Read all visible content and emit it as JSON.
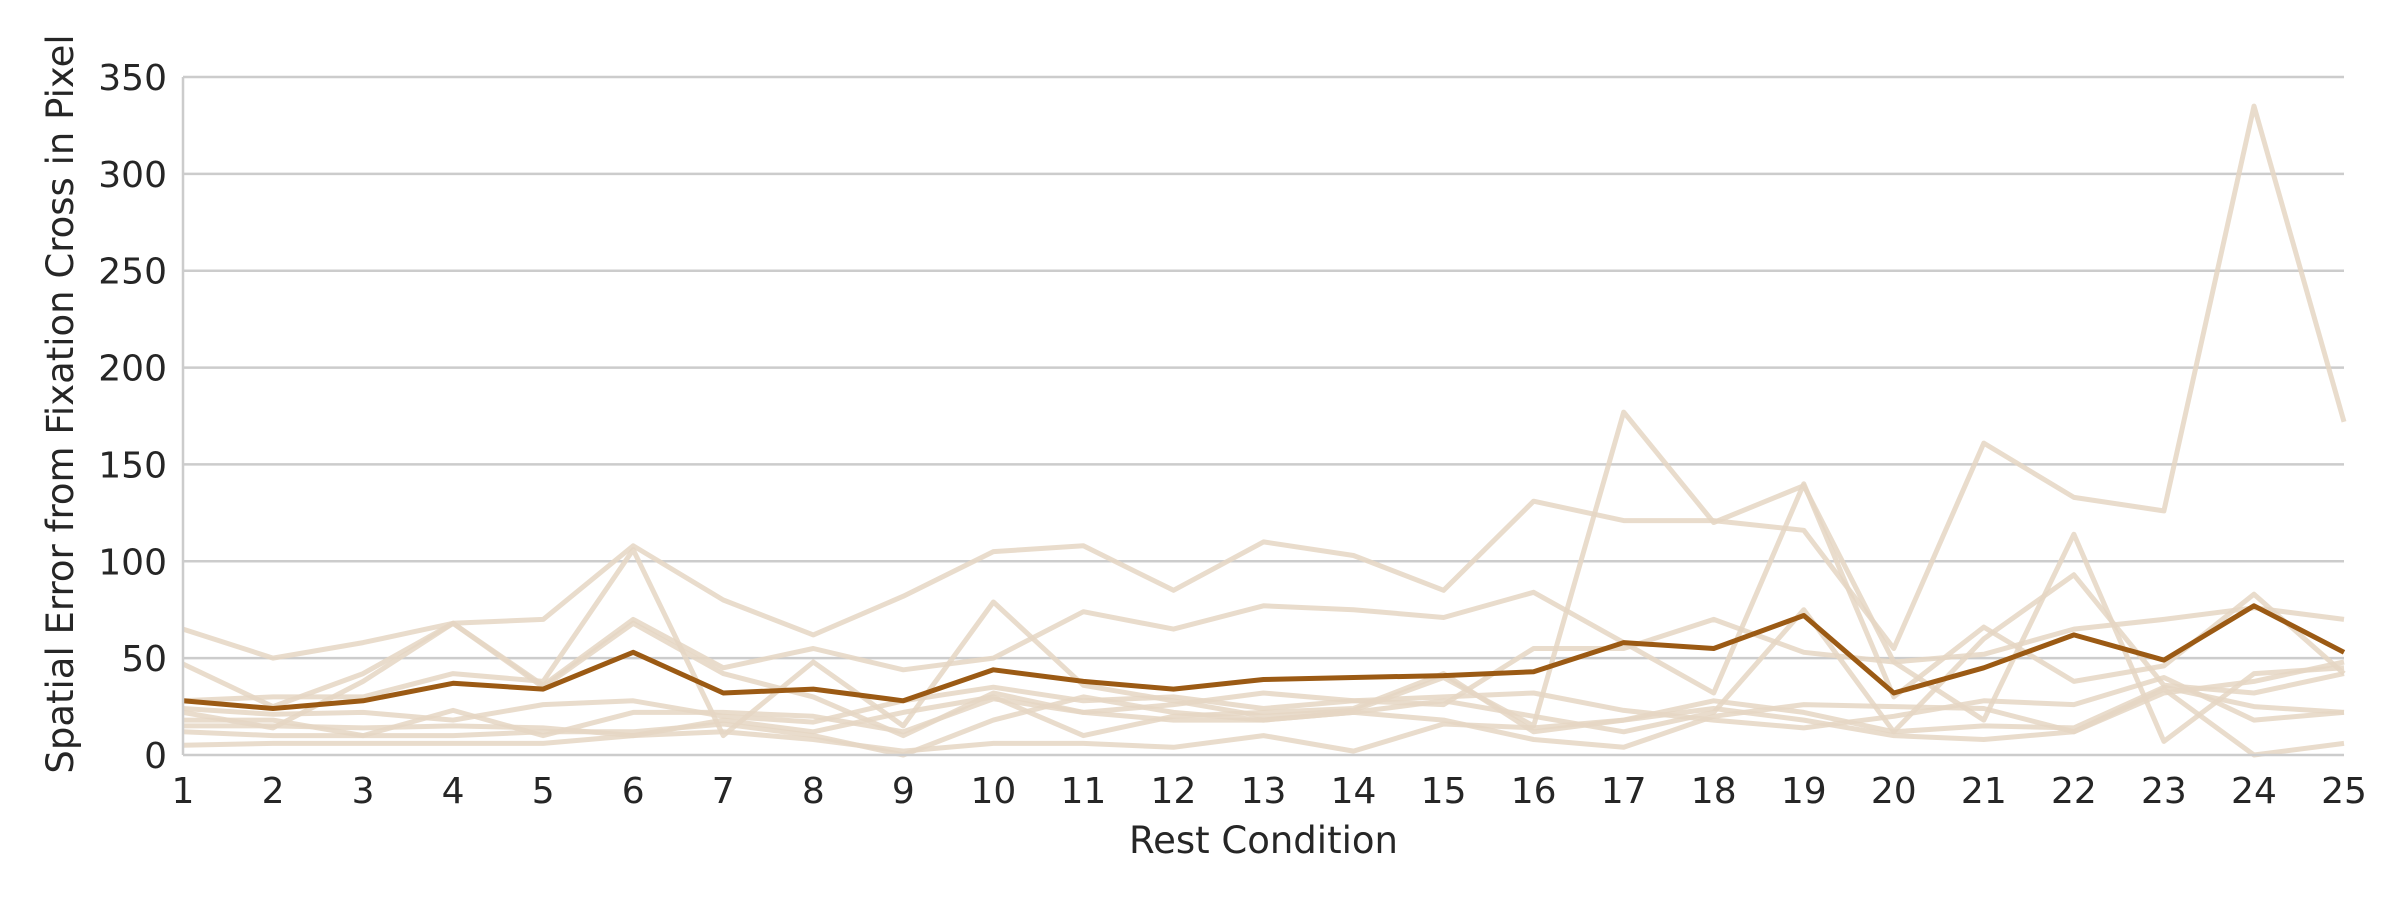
{
  "chart_data": {
    "type": "line",
    "title": "",
    "xlabel": "Rest Condition",
    "ylabel": "Spatial Error from Fixation Cross in Pixel",
    "x": [
      1,
      2,
      3,
      4,
      5,
      6,
      7,
      8,
      9,
      10,
      11,
      12,
      13,
      14,
      15,
      16,
      17,
      18,
      19,
      20,
      21,
      22,
      23,
      24,
      25
    ],
    "xlim": [
      1,
      25
    ],
    "ylim": [
      0,
      350
    ],
    "yticks": [
      0,
      50,
      100,
      150,
      200,
      250,
      300,
      350
    ],
    "grid": "horizontal",
    "legend": "none",
    "colors": {
      "individual": "#e5d6c3",
      "mean": "#9b5a14"
    },
    "individual_series": [
      {
        "values": [
          65,
          50,
          58,
          68,
          70,
          108,
          80,
          62,
          82,
          105,
          108,
          85,
          110,
          103,
          85,
          131,
          121,
          121,
          116,
          55,
          161,
          133,
          126,
          335,
          172
        ]
      },
      {
        "values": [
          47,
          25,
          42,
          68,
          36,
          70,
          45,
          55,
          44,
          50,
          74,
          65,
          77,
          75,
          71,
          84,
          58,
          32,
          140,
          30,
          66,
          38,
          46,
          83,
          42
        ]
      },
      {
        "values": [
          28,
          30,
          30,
          42,
          38,
          106,
          10,
          48,
          15,
          79,
          36,
          28,
          20,
          23,
          40,
          15,
          177,
          120,
          139,
          48,
          18,
          114,
          7,
          42,
          45
        ]
      },
      {
        "values": [
          22,
          14,
          38,
          68,
          35,
          68,
          42,
          30,
          10,
          32,
          22,
          26,
          32,
          28,
          26,
          55,
          55,
          70,
          53,
          48,
          52,
          65,
          70,
          76,
          70
        ]
      },
      {
        "values": [
          18,
          18,
          10,
          23,
          10,
          22,
          22,
          20,
          12,
          29,
          22,
          18,
          18,
          22,
          28,
          20,
          12,
          22,
          75,
          12,
          60,
          93,
          36,
          32,
          42
        ]
      },
      {
        "values": [
          24,
          21,
          22,
          18,
          26,
          28,
          20,
          17,
          28,
          35,
          28,
          30,
          24,
          28,
          30,
          32,
          23,
          18,
          14,
          20,
          28,
          26,
          40,
          18,
          22
        ]
      },
      {
        "values": [
          15,
          15,
          14,
          15,
          14,
          10,
          18,
          12,
          22,
          30,
          10,
          20,
          22,
          24,
          42,
          12,
          18,
          28,
          22,
          12,
          15,
          14,
          35,
          25,
          22
        ]
      },
      {
        "values": [
          12,
          10,
          10,
          10,
          12,
          12,
          16,
          10,
          0,
          18,
          30,
          22,
          18,
          22,
          18,
          8,
          4,
          20,
          26,
          25,
          24,
          12,
          32,
          38,
          48
        ]
      },
      {
        "values": [
          5,
          6,
          6,
          6,
          6,
          10,
          12,
          8,
          2,
          6,
          6,
          4,
          10,
          2,
          16,
          14,
          18,
          24,
          18,
          10,
          8,
          12,
          34,
          0,
          6
        ]
      }
    ],
    "mean_series": {
      "values": [
        28,
        24,
        28,
        37,
        34,
        53,
        32,
        34,
        28,
        44,
        38,
        34,
        39,
        40,
        41,
        43,
        58,
        55,
        72,
        32,
        45,
        62,
        49,
        77,
        53
      ]
    }
  }
}
